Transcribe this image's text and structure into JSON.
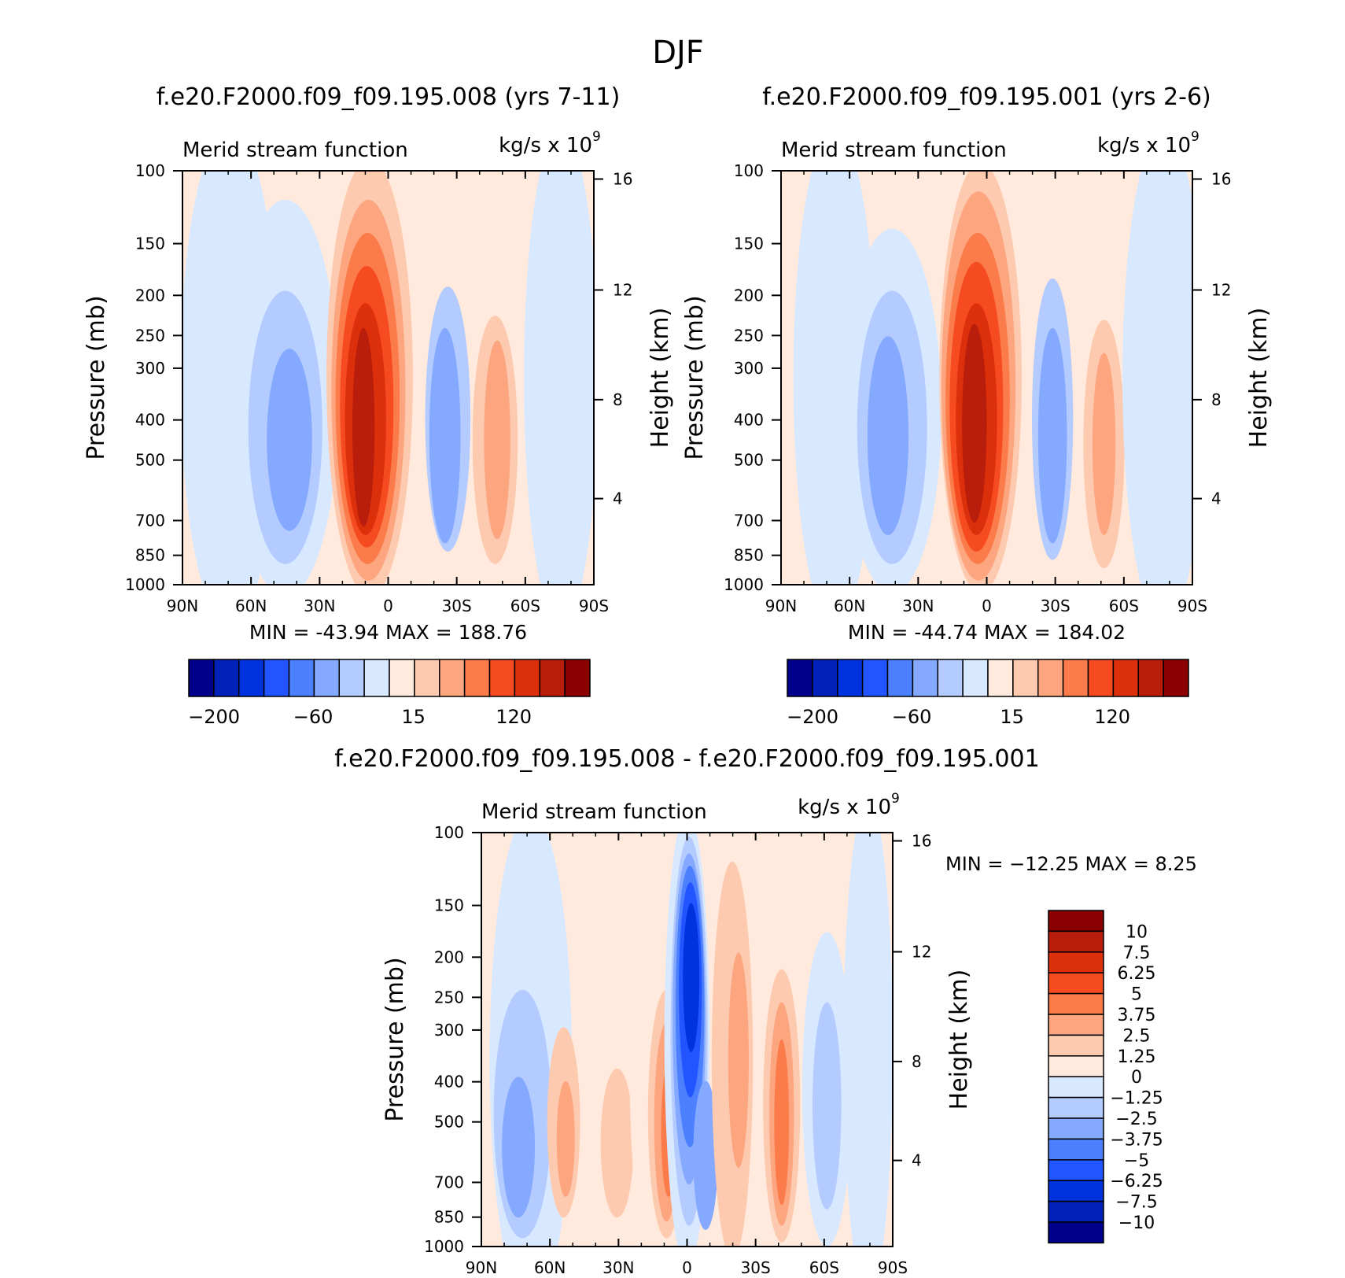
{
  "figure_title": "DJF",
  "chart_data": [
    {
      "type": "heatmap",
      "title": "f.e20.F2000.f09_f09.195.008 (yrs 7-11)",
      "subtitle_left": "Merid stream function",
      "subtitle_right": "kg/s x 10",
      "unit_exponent": "9",
      "xlabel": "",
      "ylabel": "Pressure (mb)",
      "ylabel_right": "Height (km)",
      "x_ticks": [
        "90N",
        "60N",
        "30N",
        "0",
        "30S",
        "60S",
        "90S"
      ],
      "y_ticks": [
        "100",
        "150",
        "200",
        "250",
        "300",
        "400",
        "500",
        "700",
        "850",
        "1000"
      ],
      "y_right_ticks": [
        "16",
        "12",
        "8",
        "4"
      ],
      "ylim": [
        1000,
        100
      ],
      "min_max_text": "MIN = -43.94   MAX = 188.76",
      "colorbar_labels": [
        "-200",
        "-60",
        "15",
        "120"
      ],
      "cells": [
        {
          "lat": 42,
          "p": 560,
          "v": -43.9
        },
        {
          "lat": 11,
          "p": 520,
          "v": 188.8
        },
        {
          "lat": -25,
          "p": 520,
          "v": -35.0
        },
        {
          "lat": -47,
          "p": 520,
          "v": 55.0
        }
      ]
    },
    {
      "type": "heatmap",
      "title": "f.e20.F2000.f09_f09.195.001 (yrs 2-6)",
      "subtitle_left": "Merid stream function",
      "subtitle_right": "kg/s x 10",
      "unit_exponent": "9",
      "xlabel": "",
      "ylabel": "Pressure (mb)",
      "ylabel_right": "Height (km)",
      "x_ticks": [
        "90N",
        "60N",
        "30N",
        "0",
        "30S",
        "60S",
        "90S"
      ],
      "y_ticks": [
        "100",
        "150",
        "200",
        "250",
        "300",
        "400",
        "500",
        "700",
        "850",
        "1000"
      ],
      "y_right_ticks": [
        "16",
        "12",
        "8",
        "4"
      ],
      "ylim": [
        1000,
        100
      ],
      "min_max_text": "MIN = -44.74   MAX = 184.02",
      "colorbar_labels": [
        "-200",
        "-60",
        "15",
        "120"
      ],
      "cells": [
        {
          "lat": 45,
          "p": 560,
          "v": -44.7
        },
        {
          "lat": 11,
          "p": 520,
          "v": 184.0
        },
        {
          "lat": -27,
          "p": 520,
          "v": -40.0
        },
        {
          "lat": -49,
          "p": 520,
          "v": 50.0
        }
      ]
    },
    {
      "type": "heatmap",
      "title": "f.e20.F2000.f09_f09.195.008 - f.e20.F2000.f09_f09.195.001",
      "subtitle_left": "Merid stream function",
      "subtitle_right": "kg/s x 10",
      "unit_exponent": "9",
      "xlabel": "",
      "ylabel": "Pressure (mb)",
      "ylabel_right": "Height (km)",
      "x_ticks": [
        "90N",
        "60N",
        "30N",
        "0",
        "30S",
        "60S",
        "90S"
      ],
      "y_ticks": [
        "100",
        "150",
        "200",
        "250",
        "300",
        "400",
        "500",
        "700",
        "850",
        "1000"
      ],
      "y_right_ticks": [
        "16",
        "12",
        "8",
        "4"
      ],
      "ylim": [
        1000,
        100
      ],
      "min_max_text": "MIN = -12.25   MAX =    8.25",
      "colorbar_labels": [
        "10",
        "7.5",
        "6.25",
        "5",
        "3.75",
        "2.5",
        "1.25",
        "0",
        "-1.25",
        "-2.5",
        "-3.75",
        "-5",
        "-6.25",
        "-7.5",
        "-10"
      ],
      "cells": [
        {
          "lat": 0,
          "p": 280,
          "v": -12.25
        },
        {
          "lat": 9,
          "p": 500,
          "v": 8.25
        },
        {
          "lat": -42,
          "p": 600,
          "v": 6.0
        },
        {
          "lat": -58,
          "p": 450,
          "v": -2.5
        }
      ]
    }
  ],
  "palettes": {
    "full": [
      "#00008b",
      "#0022b8",
      "#0033dd",
      "#2255ff",
      "#4c80ff",
      "#85a9ff",
      "#b3cbff",
      "#d8e8ff",
      "#ffeadd",
      "#fdcab0",
      "#fca57e",
      "#fb7c4a",
      "#f64a20",
      "#dc2f0b",
      "#b81e0b",
      "#8b0000"
    ],
    "bg_left": "#ffeadd",
    "bg_right": "#d8e8ff"
  }
}
